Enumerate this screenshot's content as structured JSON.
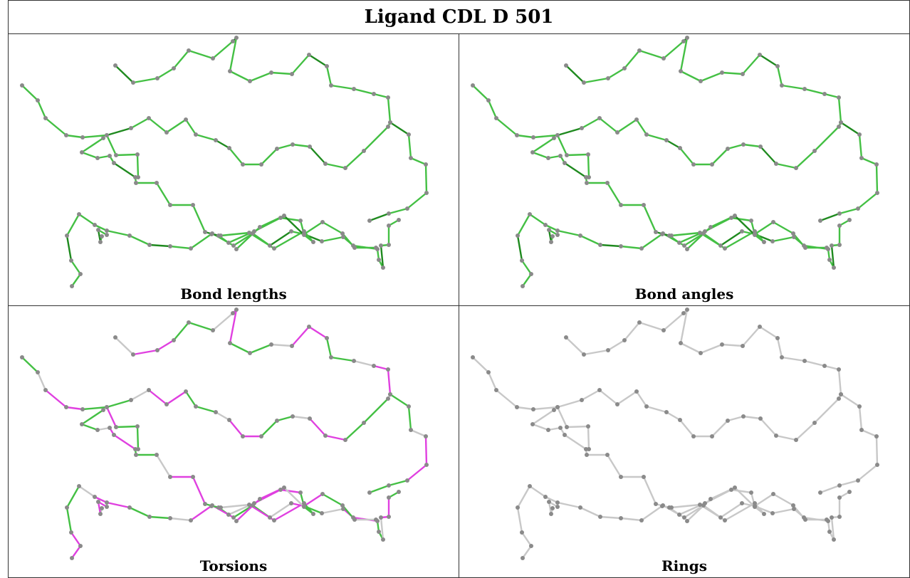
{
  "title": "Ligand CDL D 501",
  "panels": [
    {
      "caption": "Bond lengths",
      "mode": "lengths"
    },
    {
      "caption": "Bond angles",
      "mode": "angles"
    },
    {
      "caption": "Torsions",
      "mode": "torsions"
    },
    {
      "caption": "Rings",
      "mode": "rings"
    }
  ],
  "colors": {
    "bond_green": "#44c044",
    "bond_dark_green": "#1f8a1f",
    "bond_magenta": "#e040e0",
    "bond_grey": "#c8c8c8",
    "atom": "#8a8a8a",
    "border": "#333333"
  }
}
